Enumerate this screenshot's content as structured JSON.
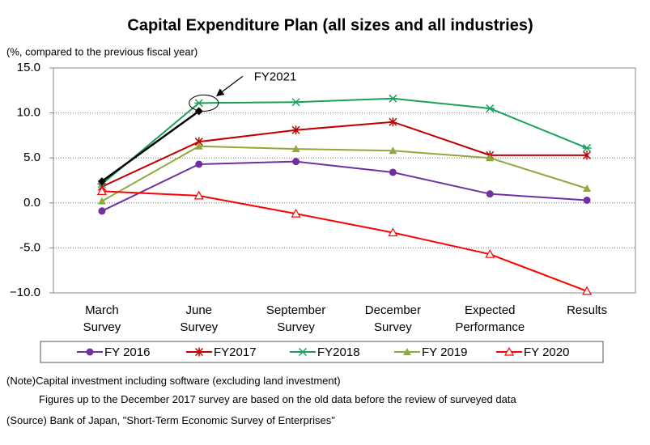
{
  "chart_data": {
    "type": "line",
    "title": "Capital Expenditure Plan (all sizes and all industries)",
    "y_axis_label": "(%, compared to the previous fiscal year)",
    "categories": [
      "March Survey",
      "June Survey",
      "September Survey",
      "December Survey",
      "Expected Performance",
      "Results"
    ],
    "ylim": [
      -10,
      15
    ],
    "yticks": [
      {
        "value": -10,
        "label": "−10.0"
      },
      {
        "value": -5,
        "label": "-5.0"
      },
      {
        "value": 0,
        "label": "0.0"
      },
      {
        "value": 5,
        "label": "5.0"
      },
      {
        "value": 10,
        "label": "10.0"
      },
      {
        "value": 15,
        "label": "15.0"
      }
    ],
    "grid": true,
    "legend": "bottom",
    "series": [
      {
        "name": "FY 2016",
        "color": "#7030a0",
        "marker": "circle",
        "values": [
          -0.9,
          4.3,
          4.6,
          3.4,
          1.0,
          0.3
        ]
      },
      {
        "name": "FY2017",
        "color": "#c00000",
        "marker": "star",
        "values": [
          1.8,
          6.8,
          8.1,
          9.0,
          5.3,
          5.3
        ]
      },
      {
        "name": "FY2018",
        "color": "#1aa05a",
        "marker": "xstar",
        "values": [
          2.1,
          11.1,
          11.2,
          11.6,
          10.5,
          6.1
        ]
      },
      {
        "name": "FY 2019",
        "color": "#8faa3c",
        "marker": "triangle",
        "values": [
          0.2,
          6.3,
          6.0,
          5.8,
          5.0,
          1.6
        ]
      },
      {
        "name": "FY 2020",
        "color": "#ff0000",
        "marker": "opentriangle",
        "values": [
          1.3,
          0.8,
          -1.2,
          -3.3,
          -5.7,
          -9.8
        ]
      },
      {
        "name": "FY2021",
        "color": "#000000",
        "marker": "diamond",
        "in_legend": false,
        "values": [
          2.4,
          10.2,
          null,
          null,
          null,
          null
        ]
      }
    ],
    "notes": [
      "(Note)Capital investment including software (excluding land investment)",
      "Figures up to the December 2017 survey are based on the old data before the review of surveyed data",
      "(Source) Bank of Japan, \"Short-Term Economic Survey of Enterprises\""
    ]
  }
}
